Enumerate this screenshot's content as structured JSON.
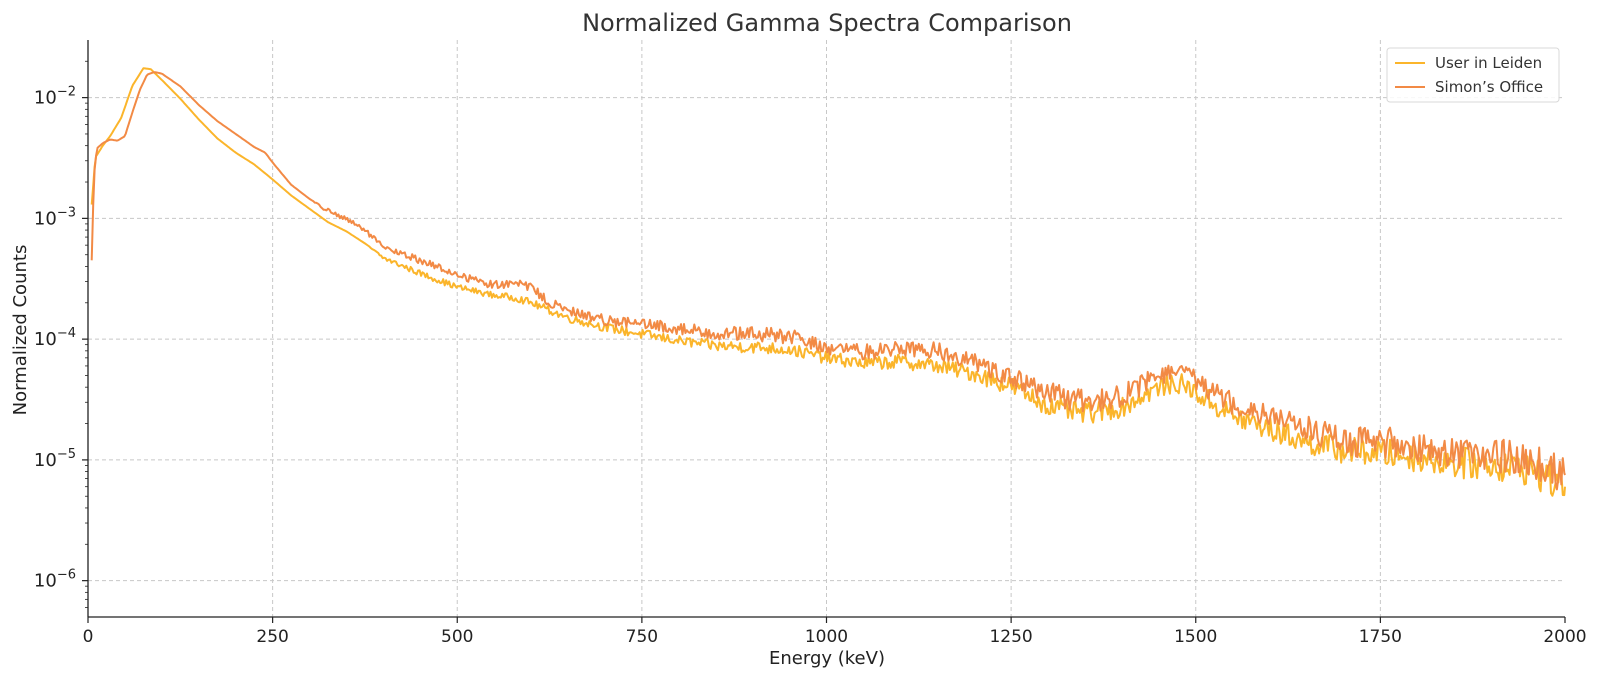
{
  "chart_data": {
    "type": "line",
    "title": "Normalized Gamma Spectra Comparison",
    "xlabel": "Energy (keV)",
    "ylabel": "Normalized Counts",
    "xlim": [
      0,
      2000
    ],
    "ylim": [
      5e-07,
      0.03
    ],
    "yscale": "log",
    "grid": true,
    "legend_position": "top-right",
    "x_ticks": [
      {
        "value": 0,
        "label": "0"
      },
      {
        "value": 250,
        "label": "250"
      },
      {
        "value": 500,
        "label": "500"
      },
      {
        "value": 750,
        "label": "750"
      },
      {
        "value": 1000,
        "label": "1000"
      },
      {
        "value": 1250,
        "label": "1250"
      },
      {
        "value": 1500,
        "label": "1500"
      },
      {
        "value": 1750,
        "label": "1750"
      },
      {
        "value": 2000,
        "label": "2000"
      }
    ],
    "y_ticks": [
      {
        "value": 0.01,
        "base": "10",
        "exp": "−2"
      },
      {
        "value": 0.001,
        "base": "10",
        "exp": "−3"
      },
      {
        "value": 0.0001,
        "base": "10",
        "exp": "−4"
      },
      {
        "value": 1e-05,
        "base": "10",
        "exp": "−5"
      },
      {
        "value": 1e-06,
        "base": "10",
        "exp": "−6"
      }
    ],
    "series": [
      {
        "name": "User in Leiden",
        "color": "#fbb52b",
        "x": [
          5,
          10,
          20,
          30,
          45,
          60,
          75,
          85,
          100,
          125,
          150,
          175,
          200,
          225,
          250,
          275,
          300,
          325,
          350,
          375,
          400,
          450,
          500,
          550,
          580,
          600,
          650,
          700,
          750,
          800,
          850,
          900,
          950,
          1000,
          1050,
          1100,
          1150,
          1200,
          1250,
          1300,
          1350,
          1400,
          1450,
          1480,
          1500,
          1550,
          1600,
          1650,
          1700,
          1750,
          1800,
          1850,
          1900,
          1950,
          2000
        ],
        "y": [
          0.0013,
          0.0032,
          0.004,
          0.0048,
          0.0068,
          0.0125,
          0.0175,
          0.0172,
          0.014,
          0.0098,
          0.0066,
          0.0046,
          0.0035,
          0.0028,
          0.0021,
          0.00155,
          0.0012,
          0.00093,
          0.00078,
          0.00062,
          0.00047,
          0.00035,
          0.00027,
          0.00023,
          0.00022,
          0.0002,
          0.00015,
          0.000125,
          0.00011,
          9.7e-05,
          8.8e-05,
          8.6e-05,
          8.2e-05,
          7e-05,
          6.3e-05,
          6.5e-05,
          6e-05,
          5.2e-05,
          4.1e-05,
          2.8e-05,
          2.4e-05,
          2.7e-05,
          4e-05,
          4.3e-05,
          3.6e-05,
          2.3e-05,
          1.8e-05,
          1.4e-05,
          1.2e-05,
          1.15e-05,
          1.05e-05,
          9.5e-06,
          9.2e-06,
          8.5e-06,
          6e-06
        ],
        "noise": [
          0,
          0,
          0,
          0,
          0,
          0,
          0,
          0,
          0,
          0,
          0,
          0,
          0,
          0,
          0,
          0,
          0,
          0,
          0,
          0,
          0.02,
          0.025,
          0.025,
          0.025,
          0.03,
          0.03,
          0.035,
          0.035,
          0.04,
          0.04,
          0.045,
          0.05,
          0.05,
          0.05,
          0.055,
          0.06,
          0.06,
          0.07,
          0.08,
          0.08,
          0.09,
          0.08,
          0.08,
          0.08,
          0.09,
          0.1,
          0.1,
          0.1,
          0.11,
          0.12,
          0.12,
          0.13,
          0.13,
          0.14,
          0.15
        ]
      },
      {
        "name": "Simon’s Office",
        "color": "#f28a45",
        "x": [
          5,
          8,
          12,
          20,
          30,
          40,
          50,
          60,
          70,
          80,
          90,
          100,
          125,
          150,
          175,
          200,
          225,
          240,
          250,
          275,
          300,
          325,
          350,
          375,
          400,
          450,
          500,
          550,
          580,
          600,
          625,
          650,
          700,
          750,
          800,
          850,
          900,
          950,
          1000,
          1050,
          1100,
          1150,
          1200,
          1250,
          1300,
          1350,
          1400,
          1450,
          1470,
          1500,
          1550,
          1600,
          1650,
          1700,
          1750,
          1800,
          1850,
          1900,
          1950,
          2000
        ],
        "y": [
          0.00045,
          0.0022,
          0.0038,
          0.0042,
          0.0045,
          0.0044,
          0.0048,
          0.0075,
          0.0115,
          0.0155,
          0.0163,
          0.0158,
          0.0124,
          0.0087,
          0.0064,
          0.005,
          0.0039,
          0.0035,
          0.0029,
          0.0019,
          0.00145,
          0.00115,
          0.00098,
          0.0008,
          0.00057,
          0.00045,
          0.00034,
          0.00028,
          0.00029,
          0.00027,
          0.0002,
          0.00017,
          0.000145,
          0.000132,
          0.000122,
          0.000112,
          0.00011,
          0.000105,
          8.5e-05,
          7.8e-05,
          8.5e-05,
          8e-05,
          6.5e-05,
          4.8e-05,
          3.5e-05,
          3e-05,
          3.4e-05,
          5e-05,
          5.4e-05,
          4.6e-05,
          3e-05,
          2.4e-05,
          1.8e-05,
          1.4e-05,
          1.4e-05,
          1.3e-05,
          1.15e-05,
          1.1e-05,
          1e-05,
          7.5e-06
        ],
        "noise": [
          0,
          0,
          0,
          0,
          0,
          0,
          0,
          0,
          0,
          0,
          0,
          0,
          0,
          0,
          0,
          0,
          0,
          0,
          0,
          0,
          0,
          0.02,
          0.02,
          0.02,
          0.025,
          0.03,
          0.03,
          0.035,
          0.03,
          0.035,
          0.04,
          0.045,
          0.045,
          0.05,
          0.05,
          0.055,
          0.06,
          0.065,
          0.06,
          0.065,
          0.07,
          0.07,
          0.07,
          0.08,
          0.1,
          0.1,
          0.09,
          0.08,
          0.08,
          0.09,
          0.1,
          0.1,
          0.11,
          0.12,
          0.13,
          0.13,
          0.14,
          0.14,
          0.15,
          0.15
        ]
      }
    ]
  }
}
